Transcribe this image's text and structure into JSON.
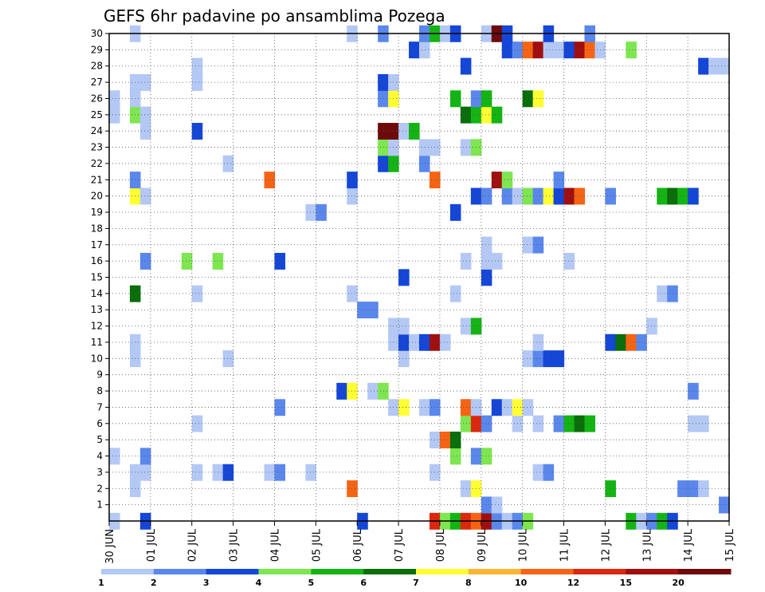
{
  "chart_data": {
    "type": "heatmap",
    "title": "GEFS 6hr padavine po ansamblima Pozega",
    "xlabel": "",
    "ylabel": "",
    "x_tick_labels": [
      "30 JUN",
      "01 JUL",
      "02 JUL",
      "03 JUL",
      "04 JUL",
      "05 JUL",
      "06 JUL",
      "07 JUL",
      "08 JUL",
      "09 JUL",
      "10 JUL",
      "11 JUL",
      "12 JUL",
      "13 JUL",
      "14 JUL",
      "15 JUL"
    ],
    "y_tick_labels": [
      "1",
      "2",
      "3",
      "4",
      "5",
      "6",
      "7",
      "8",
      "9",
      "10",
      "11",
      "12",
      "13",
      "14",
      "15",
      "16",
      "17",
      "18",
      "19",
      "20",
      "21",
      "22",
      "23",
      "24",
      "25",
      "26",
      "27",
      "28",
      "29",
      "30"
    ],
    "x_unit": "6-hour step from 30 JUN 00Z",
    "x_range": [
      0,
      60
    ],
    "y_range": [
      0,
      30
    ],
    "grid": true,
    "colorbar": {
      "thresholds": [
        1,
        2,
        3,
        4,
        5,
        6,
        7,
        8,
        10,
        12,
        15,
        20
      ],
      "labels": [
        "1",
        "2",
        "3",
        "4",
        "5",
        "6",
        "7",
        "8",
        "10",
        "12",
        "15",
        "20"
      ],
      "colors": [
        "#b4c8f5",
        "#5a87eb",
        "#1446d7",
        "#7ee650",
        "#14b414",
        "#0a6e0a",
        "#ffff32",
        "#ffb432",
        "#f56414",
        "#dc280f",
        "#a00f0f",
        "#6e0a0a"
      ]
    },
    "cells": [
      [
        0.5,
        0,
        1
      ],
      [
        3.5,
        0,
        3
      ],
      [
        24.5,
        0,
        3
      ],
      [
        31.5,
        0,
        12
      ],
      [
        32.5,
        0,
        4
      ],
      [
        33.5,
        0,
        5
      ],
      [
        34.5,
        0,
        12
      ],
      [
        35.5,
        0,
        10
      ],
      [
        36.5,
        0,
        15
      ],
      [
        37.5,
        0,
        2
      ],
      [
        38.5,
        0,
        1
      ],
      [
        39.5,
        0,
        2
      ],
      [
        40.5,
        0,
        4
      ],
      [
        50.5,
        0,
        5
      ],
      [
        51.5,
        0,
        1
      ],
      [
        52.5,
        0,
        2
      ],
      [
        53.5,
        0,
        5
      ],
      [
        54.5,
        0,
        3
      ],
      [
        36.5,
        1,
        2
      ],
      [
        37.5,
        1,
        1
      ],
      [
        59.5,
        1,
        2
      ],
      [
        2.5,
        2,
        1
      ],
      [
        23.5,
        2,
        10
      ],
      [
        34.5,
        2,
        1
      ],
      [
        35.5,
        2,
        7
      ],
      [
        48.5,
        2,
        5
      ],
      [
        55.5,
        2,
        2
      ],
      [
        56.5,
        2,
        2
      ],
      [
        57.5,
        2,
        1
      ],
      [
        2.5,
        3,
        1
      ],
      [
        3.5,
        3,
        1
      ],
      [
        8.5,
        3,
        1
      ],
      [
        10.5,
        3,
        1
      ],
      [
        11.5,
        3,
        3
      ],
      [
        15.5,
        3,
        1
      ],
      [
        16.5,
        3,
        2
      ],
      [
        19.5,
        3,
        1
      ],
      [
        31.5,
        3,
        1
      ],
      [
        41.5,
        3,
        1
      ],
      [
        42.5,
        3,
        2
      ],
      [
        0.5,
        4,
        1
      ],
      [
        3.5,
        4,
        2
      ],
      [
        33.5,
        4,
        4
      ],
      [
        35.5,
        4,
        2
      ],
      [
        36.5,
        4,
        4
      ],
      [
        31.5,
        5,
        1
      ],
      [
        32.5,
        5,
        10
      ],
      [
        33.5,
        5,
        6
      ],
      [
        8.5,
        6,
        1
      ],
      [
        34.5,
        6,
        4
      ],
      [
        35.5,
        6,
        12
      ],
      [
        36.5,
        6,
        2
      ],
      [
        39.5,
        6,
        1
      ],
      [
        41.5,
        6,
        1
      ],
      [
        43.5,
        6,
        2
      ],
      [
        44.5,
        6,
        5
      ],
      [
        45.5,
        6,
        6
      ],
      [
        46.5,
        6,
        5
      ],
      [
        56.5,
        6,
        1
      ],
      [
        57.5,
        6,
        1
      ],
      [
        16.5,
        7,
        2
      ],
      [
        27.5,
        7,
        1
      ],
      [
        28.5,
        7,
        7
      ],
      [
        30.5,
        7,
        1
      ],
      [
        31.5,
        7,
        2
      ],
      [
        34.5,
        7,
        10
      ],
      [
        35.5,
        7,
        1
      ],
      [
        37.5,
        7,
        3
      ],
      [
        38.5,
        7,
        1
      ],
      [
        39.5,
        7,
        7
      ],
      [
        40.5,
        7,
        1
      ],
      [
        22.5,
        8,
        3
      ],
      [
        23.5,
        8,
        7
      ],
      [
        25.5,
        8,
        1
      ],
      [
        26.5,
        8,
        4
      ],
      [
        56.5,
        8,
        2
      ],
      [
        2.5,
        10,
        1
      ],
      [
        11.5,
        10,
        1
      ],
      [
        28.5,
        10,
        1
      ],
      [
        40.5,
        10,
        1
      ],
      [
        41.5,
        10,
        2
      ],
      [
        42.5,
        10,
        3
      ],
      [
        43.5,
        10,
        3
      ],
      [
        2.5,
        11,
        1
      ],
      [
        27.5,
        11,
        1
      ],
      [
        28.5,
        11,
        3
      ],
      [
        29.5,
        11,
        1
      ],
      [
        30.5,
        11,
        3
      ],
      [
        31.5,
        11,
        15
      ],
      [
        32.5,
        11,
        1
      ],
      [
        41.5,
        11,
        1
      ],
      [
        48.5,
        11,
        3
      ],
      [
        49.5,
        11,
        6
      ],
      [
        50.5,
        11,
        10
      ],
      [
        51.5,
        11,
        2
      ],
      [
        27.5,
        12,
        1
      ],
      [
        28.5,
        12,
        1
      ],
      [
        34.5,
        12,
        1
      ],
      [
        35.5,
        12,
        5
      ],
      [
        52.5,
        12,
        1
      ],
      [
        24.5,
        13,
        2
      ],
      [
        25.5,
        13,
        2
      ],
      [
        2.5,
        14,
        6
      ],
      [
        8.5,
        14,
        1
      ],
      [
        23.5,
        14,
        1
      ],
      [
        33.5,
        14,
        1
      ],
      [
        53.5,
        14,
        1
      ],
      [
        54.5,
        14,
        2
      ],
      [
        28.5,
        15,
        3
      ],
      [
        36.5,
        15,
        3
      ],
      [
        3.5,
        16,
        2
      ],
      [
        7.5,
        16,
        4
      ],
      [
        10.5,
        16,
        4
      ],
      [
        16.5,
        16,
        3
      ],
      [
        34.5,
        16,
        1
      ],
      [
        36.5,
        16,
        1
      ],
      [
        37.5,
        16,
        1
      ],
      [
        44.5,
        16,
        1
      ],
      [
        36.5,
        17,
        1
      ],
      [
        40.5,
        17,
        1
      ],
      [
        41.5,
        17,
        2
      ],
      [
        33.5,
        19,
        3
      ],
      [
        19.5,
        19,
        1
      ],
      [
        20.5,
        19,
        2
      ],
      [
        2.5,
        20,
        7
      ],
      [
        3.5,
        20,
        1
      ],
      [
        23.5,
        20,
        1
      ],
      [
        35.5,
        20,
        3
      ],
      [
        36.5,
        20,
        2
      ],
      [
        38.5,
        20,
        2
      ],
      [
        39.5,
        20,
        1
      ],
      [
        40.5,
        20,
        4
      ],
      [
        41.5,
        20,
        2
      ],
      [
        42.5,
        20,
        7
      ],
      [
        43.5,
        20,
        3
      ],
      [
        44.5,
        20,
        15
      ],
      [
        45.5,
        20,
        10
      ],
      [
        48.5,
        20,
        2
      ],
      [
        53.5,
        20,
        5
      ],
      [
        54.5,
        20,
        6
      ],
      [
        55.5,
        20,
        5
      ],
      [
        56.5,
        20,
        3
      ],
      [
        2.5,
        21,
        2
      ],
      [
        15.5,
        21,
        10
      ],
      [
        23.5,
        21,
        3
      ],
      [
        31.5,
        21,
        10
      ],
      [
        37.5,
        21,
        15
      ],
      [
        38.5,
        21,
        4
      ],
      [
        43.5,
        21,
        2
      ],
      [
        11.5,
        22,
        1
      ],
      [
        26.5,
        22,
        3
      ],
      [
        27.5,
        22,
        5
      ],
      [
        30.5,
        22,
        2
      ],
      [
        26.5,
        23,
        4
      ],
      [
        27.5,
        23,
        1
      ],
      [
        30.5,
        23,
        1
      ],
      [
        31.5,
        23,
        1
      ],
      [
        34.5,
        23,
        1
      ],
      [
        35.5,
        23,
        4
      ],
      [
        3.5,
        24,
        1
      ],
      [
        8.5,
        24,
        3
      ],
      [
        26.5,
        24,
        20
      ],
      [
        27.5,
        24,
        20
      ],
      [
        28.5,
        24,
        1
      ],
      [
        29.5,
        24,
        5
      ],
      [
        0.5,
        25,
        1
      ],
      [
        2.5,
        25,
        4
      ],
      [
        3.5,
        25,
        1
      ],
      [
        34.5,
        25,
        6
      ],
      [
        35.5,
        25,
        5
      ],
      [
        36.5,
        25,
        7
      ],
      [
        37.5,
        25,
        5
      ],
      [
        0.5,
        26,
        1
      ],
      [
        2.5,
        26,
        1
      ],
      [
        26.5,
        26,
        2
      ],
      [
        27.5,
        26,
        7
      ],
      [
        33.5,
        26,
        5
      ],
      [
        35.5,
        26,
        2
      ],
      [
        36.5,
        26,
        5
      ],
      [
        40.5,
        26,
        6
      ],
      [
        41.5,
        26,
        7
      ],
      [
        2.5,
        27,
        1
      ],
      [
        3.5,
        27,
        1
      ],
      [
        8.5,
        27,
        1
      ],
      [
        26.5,
        27,
        3
      ],
      [
        27.5,
        27,
        1
      ],
      [
        8.5,
        28,
        1
      ],
      [
        34.5,
        28,
        3
      ],
      [
        57.5,
        28,
        3
      ],
      [
        58.5,
        28,
        1
      ],
      [
        59.5,
        28,
        1
      ],
      [
        29.5,
        29,
        3
      ],
      [
        30.5,
        29,
        1
      ],
      [
        38.5,
        29,
        3
      ],
      [
        39.5,
        29,
        2
      ],
      [
        40.5,
        29,
        10
      ],
      [
        41.5,
        29,
        15
      ],
      [
        42.5,
        29,
        1
      ],
      [
        43.5,
        29,
        1
      ],
      [
        44.5,
        29,
        3
      ],
      [
        45.5,
        29,
        15
      ],
      [
        46.5,
        29,
        10
      ],
      [
        47.5,
        29,
        1
      ],
      [
        50.5,
        29,
        4
      ],
      [
        2.5,
        30,
        1
      ],
      [
        23.5,
        30,
        1
      ],
      [
        26.5,
        30,
        2
      ],
      [
        30.5,
        30,
        2
      ],
      [
        31.5,
        30,
        5
      ],
      [
        32.5,
        30,
        1
      ],
      [
        33.5,
        30,
        3
      ],
      [
        36.5,
        30,
        1
      ],
      [
        37.5,
        30,
        20
      ],
      [
        38.5,
        30,
        3
      ],
      [
        42.5,
        30,
        3
      ],
      [
        46.5,
        30,
        2
      ]
    ]
  }
}
